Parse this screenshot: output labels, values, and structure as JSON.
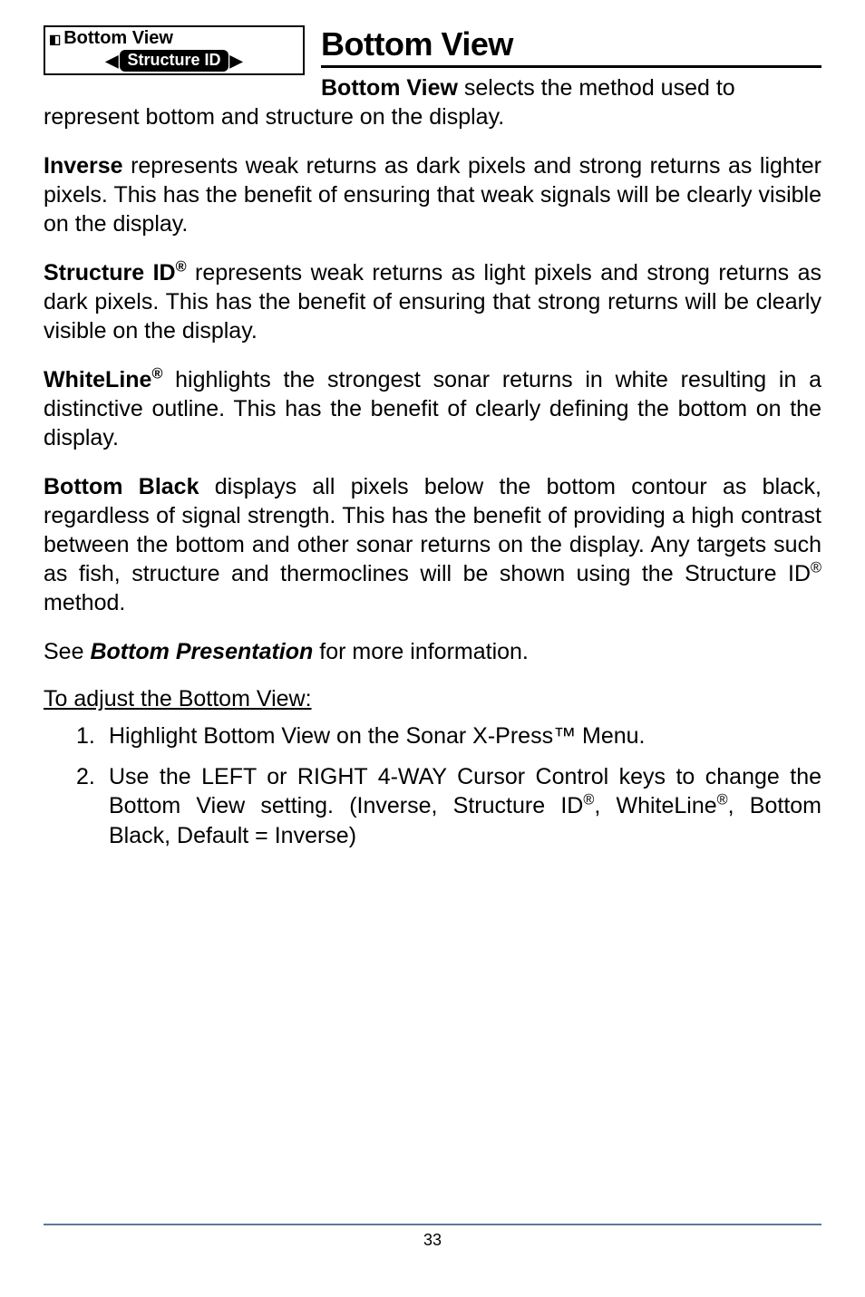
{
  "widget": {
    "icon": "◧",
    "title": "Bottom View",
    "left_arrow": "◀",
    "value": "Structure ID",
    "right_arrow": "▶"
  },
  "heading": "Bottom View",
  "para1_lead_bold": "Bottom View",
  "para1_lead_rest": " selects the method used to",
  "para1_tail": "represent bottom and structure on the display.",
  "para2_bold": "Inverse",
  "para2_rest": " represents weak returns as dark pixels and strong returns as lighter pixels. This has the benefit of ensuring that weak signals will be clearly visible on the display.",
  "para3_bold": "Structure ID",
  "para3_sup": "®",
  "para3_rest": " represents weak returns as light pixels and strong returns as dark pixels.  This has the benefit of ensuring that strong returns will be clearly visible on the display.",
  "para4_bold": "WhiteLine",
  "para4_sup": "®",
  "para4_rest": " highlights the strongest sonar returns in white resulting in a distinctive outline.  This has the benefit of clearly defining the bottom on the display.",
  "para5_bold": "Bottom Black",
  "para5_rest_a": " displays all pixels below the bottom contour as black, regardless of signal strength. This has the benefit of providing a high contrast between the bottom and other sonar returns on the display. Any targets such as fish, structure and thermoclines will be shown using the Structure ID",
  "para5_sup": "®",
  "para5_rest_b": " method.",
  "para6_a": "See ",
  "para6_italic": "Bottom Presentation",
  "para6_b": " for more information.",
  "subhead": "To adjust the Bottom View:",
  "list": {
    "item1_num": "1.",
    "item1_text_a": "Highlight Bottom View on the Sonar X-Press",
    "item1_tm": "™",
    "item1_text_b": " Menu.",
    "item2_num": "2.",
    "item2_text_a": "Use the LEFT or RIGHT 4-WAY Cursor Control keys to change the Bottom View setting. (Inverse, Structure ID",
    "item2_sup1": "®",
    "item2_text_b": ", WhiteLine",
    "item2_sup2": "®",
    "item2_text_c": ", Bottom Black, Default = Inverse)"
  },
  "page_number": "33",
  "colors": {
    "footer_rule": "#5a7a9a"
  }
}
